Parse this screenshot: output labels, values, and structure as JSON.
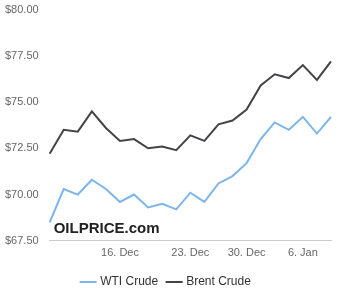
{
  "chart_data": {
    "type": "line",
    "categories": [
      null,
      null,
      null,
      null,
      null,
      "16. Dec",
      null,
      null,
      null,
      null,
      "23. Dec",
      null,
      null,
      null,
      "30. Dec",
      null,
      null,
      null,
      "6. Jan",
      null,
      null
    ],
    "series": [
      {
        "name": "WTI Crude",
        "color": "#7cb5ec",
        "marker": "none",
        "values": [
          68.5,
          70.3,
          70.0,
          70.8,
          70.3,
          69.6,
          70.0,
          69.3,
          69.5,
          69.2,
          70.1,
          69.6,
          70.6,
          71.0,
          71.7,
          73.0,
          73.9,
          73.5,
          74.2,
          73.3,
          74.2
        ]
      },
      {
        "name": "Brent Crude",
        "color": "#434348",
        "marker": "none",
        "values": [
          72.2,
          73.5,
          73.4,
          74.5,
          73.6,
          72.9,
          73.0,
          72.5,
          72.6,
          72.4,
          73.2,
          72.9,
          73.8,
          74.0,
          74.6,
          75.9,
          76.5,
          76.3,
          77.0,
          76.2,
          77.2
        ]
      }
    ],
    "ylim": [
      67.5,
      80
    ],
    "yticks": [
      {
        "value": 67.5,
        "label": "$67.50"
      },
      {
        "value": 70,
        "label": "$70.00"
      },
      {
        "value": 72.5,
        "label": "$72.50"
      },
      {
        "value": 75,
        "label": "$75.00"
      },
      {
        "value": 77.5,
        "label": "$77.50"
      },
      {
        "value": 80,
        "label": "$80.00"
      }
    ],
    "grid": false,
    "legend": "bottom",
    "annotations": [
      "OILPRICE.com"
    ]
  }
}
